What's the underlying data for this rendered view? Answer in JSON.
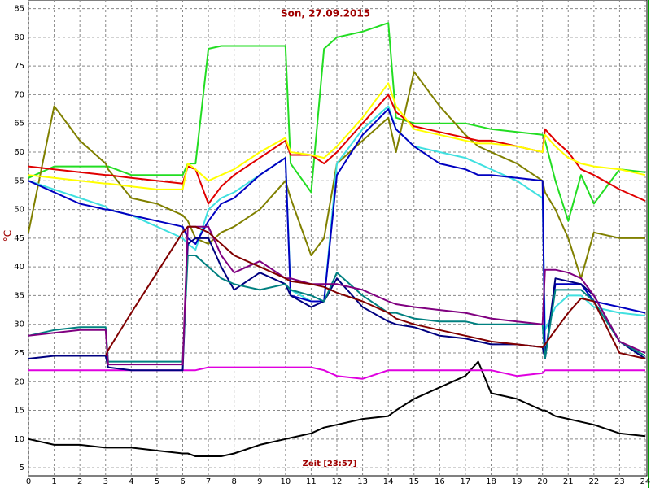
{
  "chart_data": {
    "type": "line",
    "title": "Son, 27.09.2015",
    "x_label": "Zeit [23:57]",
    "y_label": "°C",
    "xlim": [
      0,
      24
    ],
    "xticks": [
      0,
      1,
      2,
      3,
      4,
      5,
      6,
      7,
      8,
      9,
      10,
      11,
      12,
      13,
      14,
      15,
      16,
      17,
      18,
      19,
      20,
      21,
      22,
      23,
      24
    ],
    "ylim": [
      3.6,
      86.5
    ],
    "yticks": [
      5,
      10,
      15,
      20,
      25,
      30,
      35,
      40,
      45,
      50,
      55,
      60,
      65,
      70,
      75,
      80,
      85
    ],
    "grid": true,
    "x": [
      0,
      1,
      2,
      3,
      3.1,
      4,
      5,
      6,
      6.2,
      6.5,
      7,
      7.5,
      8,
      9,
      10,
      10.2,
      11,
      11.5,
      12,
      13,
      14,
      14.3,
      15,
      16,
      17,
      17.5,
      18,
      19,
      20,
      20.1,
      20.5,
      21,
      21.5,
      22,
      23,
      24
    ],
    "series": [
      {
        "color": "#000000",
        "values": [
          10,
          9,
          9,
          8.5,
          8.5,
          8.5,
          8,
          7.5,
          7.5,
          7,
          7,
          7,
          7.5,
          9,
          10,
          10.2,
          11,
          12,
          12.5,
          13.5,
          14,
          15,
          17,
          19,
          21,
          23.5,
          18,
          17,
          15,
          15,
          14,
          13.5,
          13,
          12.5,
          11,
          10.5
        ]
      },
      {
        "color": "#e000e0",
        "values": [
          22,
          22,
          22,
          22,
          22,
          22,
          22,
          22,
          22,
          22,
          22.5,
          22.5,
          22.5,
          22.5,
          22.5,
          22.5,
          22.5,
          22,
          21,
          20.5,
          22,
          22,
          22,
          22,
          22,
          22,
          22,
          21,
          21.5,
          22,
          22,
          22,
          22,
          22,
          22,
          22
        ]
      },
      {
        "color": "#22dd22",
        "values": [
          55.5,
          57.5,
          57.5,
          57.5,
          57.5,
          56,
          56,
          56,
          58,
          58,
          78,
          78.5,
          78.5,
          78.5,
          78.5,
          58,
          53,
          78,
          80,
          81,
          82.5,
          66,
          65,
          65,
          65,
          64.5,
          64,
          63.5,
          63,
          62,
          55,
          48,
          56,
          51,
          57,
          56.5
        ]
      },
      {
        "color": "#808000",
        "values": [
          46,
          68,
          62,
          58,
          57,
          52,
          51,
          49,
          48,
          45,
          44,
          46,
          47,
          50,
          55,
          52,
          42,
          45,
          58,
          62,
          66,
          60,
          74,
          68,
          63,
          61,
          60,
          58,
          55,
          53,
          50,
          45,
          38,
          46,
          45,
          45
        ]
      },
      {
        "color": "#e00000",
        "values": [
          57.5,
          57,
          56.5,
          56,
          56,
          55.5,
          55,
          54.5,
          57.5,
          57,
          51,
          54,
          56,
          59,
          62,
          59.5,
          59.5,
          58,
          60,
          65,
          70,
          67,
          64.5,
          63.5,
          62.5,
          62,
          62,
          61,
          60,
          64,
          62,
          60,
          57,
          56,
          53.5,
          51.5
        ]
      },
      {
        "color": "#ffff00",
        "values": [
          56,
          55.5,
          55,
          54.5,
          54.5,
          54,
          53.5,
          53.5,
          58,
          57,
          55,
          56,
          57,
          60,
          62.5,
          60,
          59.5,
          59,
          61,
          66,
          72,
          68,
          64,
          63,
          62,
          61.5,
          61.5,
          61,
          60,
          63,
          61,
          59,
          58,
          57.5,
          57,
          56
        ]
      },
      {
        "color": "#40e0e0",
        "values": [
          55,
          53.5,
          52,
          50.5,
          50,
          49,
          47,
          45,
          44,
          43,
          50,
          52,
          53,
          56,
          59,
          36,
          34,
          34,
          58,
          64,
          68,
          64,
          61,
          60,
          59,
          58,
          57,
          55,
          52,
          29,
          33,
          35,
          35,
          33,
          32,
          31.5
        ]
      },
      {
        "color": "#0000c0",
        "values": [
          55,
          53,
          51,
          50,
          50,
          49,
          48,
          47,
          45,
          44,
          48,
          51,
          52,
          56,
          59,
          35,
          34,
          34,
          56,
          63,
          67.5,
          64,
          61,
          58,
          57,
          56,
          56,
          55.5,
          55,
          24,
          37,
          37,
          37,
          34,
          33,
          32
        ]
      },
      {
        "color": "#000080",
        "values": [
          24,
          24.5,
          24.5,
          24.5,
          22.5,
          22,
          22,
          22,
          44,
          45,
          45,
          40,
          36,
          39,
          37,
          35,
          33,
          34,
          38,
          33,
          30.5,
          30,
          29.5,
          28,
          27.5,
          27,
          26.5,
          26.5,
          26,
          24,
          38,
          37.5,
          37,
          35,
          27,
          24
        ]
      },
      {
        "color": "#008080",
        "values": [
          28,
          29,
          29.5,
          29.5,
          23.5,
          23.5,
          23.5,
          23.5,
          42,
          42,
          40,
          38,
          37,
          36,
          37,
          36,
          35,
          34,
          39,
          35,
          32,
          32,
          31,
          30.5,
          30.5,
          30,
          30,
          30,
          30,
          24,
          36,
          36,
          36,
          34,
          27,
          24.5
        ]
      },
      {
        "color": "#800080",
        "values": [
          28,
          28.5,
          29,
          29,
          23,
          23,
          23,
          23,
          47,
          47,
          47,
          42,
          39,
          41,
          38,
          38,
          37,
          37,
          37,
          36,
          34,
          33.5,
          33,
          32.5,
          32,
          31.5,
          31,
          30.5,
          30,
          39.5,
          39.5,
          39,
          38,
          35,
          27,
          25
        ]
      },
      {
        "color": "#800000",
        "values": [
          null,
          null,
          null,
          24.5,
          25.5,
          32,
          39,
          46,
          47,
          47,
          46,
          44,
          42,
          40,
          38,
          37.5,
          37,
          36.5,
          35.5,
          34,
          32,
          31,
          30,
          29,
          28,
          27.5,
          27,
          26.5,
          26,
          26.5,
          29,
          32,
          34.5,
          34,
          25,
          24
        ]
      }
    ]
  }
}
